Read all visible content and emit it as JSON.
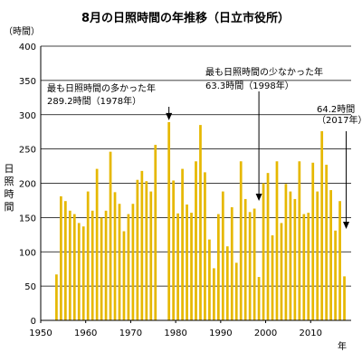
{
  "chart_data": {
    "type": "bar",
    "title": "8月の日照時間の年推移（日立市役所）",
    "y_unit": "（時間）",
    "ylabel": "日照時間",
    "xlabel": "年",
    "ylim": [
      0,
      400
    ],
    "y_ticks": [
      "0",
      "50",
      "100",
      "150",
      "200",
      "250",
      "300",
      "350",
      "400"
    ],
    "xlim": [
      1950,
      2019
    ],
    "x_ticks": [
      "1950",
      "1960",
      "1970",
      "1980",
      "1990",
      "2000",
      "2010"
    ],
    "bar_color": "#e6b800",
    "grid": true,
    "x": [
      1953,
      1954,
      1955,
      1956,
      1957,
      1958,
      1959,
      1960,
      1961,
      1962,
      1963,
      1964,
      1965,
      1966,
      1967,
      1968,
      1969,
      1970,
      1971,
      1972,
      1973,
      1974,
      1975,
      1976,
      1977,
      1978,
      1979,
      1980,
      1981,
      1982,
      1983,
      1984,
      1985,
      1986,
      1987,
      1988,
      1989,
      1990,
      1991,
      1992,
      1993,
      1994,
      1995,
      1996,
      1997,
      1998,
      1999,
      2000,
      2001,
      2002,
      2003,
      2004,
      2005,
      2006,
      2007,
      2008,
      2009,
      2010,
      2011,
      2012,
      2013,
      2014,
      2015,
      2016,
      2017
    ],
    "values": [
      67,
      181,
      174,
      160,
      155,
      142,
      137,
      188,
      160,
      221,
      150,
      160,
      246,
      187,
      170,
      130,
      155,
      170,
      205,
      218,
      203,
      188,
      256,
      0,
      0,
      289.2,
      204,
      156,
      221,
      169,
      157,
      232,
      285,
      216,
      118,
      76,
      155,
      188,
      108,
      165,
      84,
      232,
      177,
      158,
      163,
      63.3,
      200,
      215,
      124,
      232,
      142,
      199,
      188,
      177,
      232,
      155,
      157,
      230,
      188,
      276,
      227,
      190,
      131,
      174,
      64.2
    ],
    "annotations": [
      {
        "name": "most",
        "line1": "最も日照時間の多かった年",
        "line2": "289.2時間（1978年）",
        "year": 1978,
        "value": 289.2
      },
      {
        "name": "least",
        "line1": "最も日照時間の少なかった年",
        "line2": "63.3時間（1998年）",
        "year": 1998,
        "value": 63.3
      },
      {
        "name": "latest",
        "line1": "64.2時間",
        "line2": "（2017年）",
        "year": 2017,
        "value": 64.2
      }
    ]
  }
}
